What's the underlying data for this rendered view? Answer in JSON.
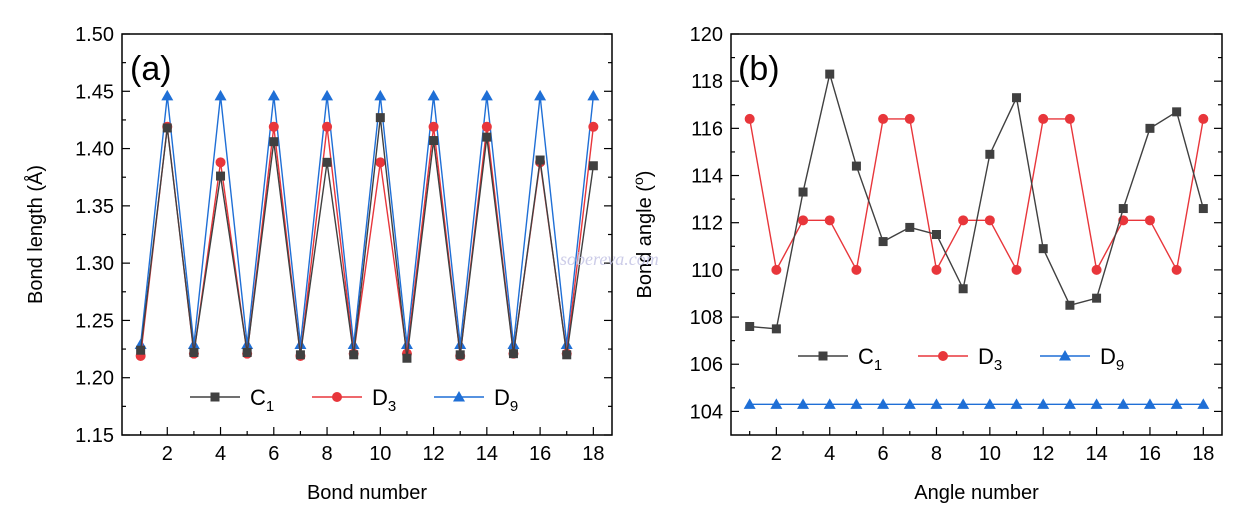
{
  "watermark": "sobereva.com",
  "colors": {
    "C1": "#404040",
    "D3": "#e8363b",
    "D9": "#1f6fd6"
  },
  "chart_data": [
    {
      "type": "line",
      "panel_label": "(a)",
      "xlabel": "Bond number",
      "ylabel_text": "Bond length (",
      "ylabel_unit": "Å",
      "ylabel_close": ")",
      "xlim": [
        0.3,
        18.7
      ],
      "ylim": [
        1.15,
        1.5
      ],
      "xticks": [
        2,
        4,
        6,
        8,
        10,
        12,
        14,
        16,
        18
      ],
      "xtick_labels": [
        "2",
        "4",
        "6",
        "8",
        "10",
        "12",
        "14",
        "16",
        "18"
      ],
      "yticks": [
        1.15,
        1.2,
        1.25,
        1.3,
        1.35,
        1.4,
        1.45,
        1.5
      ],
      "ytick_labels": [
        "1.15",
        "1.20",
        "1.25",
        "1.30",
        "1.35",
        "1.40",
        "1.45",
        "1.50"
      ],
      "x": [
        1,
        2,
        3,
        4,
        5,
        6,
        7,
        8,
        9,
        10,
        11,
        12,
        13,
        14,
        15,
        16,
        17,
        18
      ],
      "legend_position": "bottom",
      "series": [
        {
          "name": "C",
          "name_sub": "1",
          "key": "C1",
          "marker": "square",
          "values": [
            1.224,
            1.418,
            1.222,
            1.376,
            1.222,
            1.406,
            1.22,
            1.388,
            1.22,
            1.427,
            1.217,
            1.407,
            1.22,
            1.41,
            1.221,
            1.39,
            1.22,
            1.385
          ]
        },
        {
          "name": "D",
          "name_sub": "3",
          "key": "D3",
          "marker": "circle",
          "values": [
            1.219,
            1.419,
            1.221,
            1.388,
            1.221,
            1.419,
            1.219,
            1.419,
            1.221,
            1.388,
            1.221,
            1.419,
            1.219,
            1.419,
            1.221,
            1.388,
            1.221,
            1.419
          ]
        },
        {
          "name": "D",
          "name_sub": "9",
          "key": "D9",
          "marker": "triangle",
          "values": [
            1.229,
            1.446,
            1.229,
            1.446,
            1.229,
            1.446,
            1.229,
            1.446,
            1.229,
            1.446,
            1.229,
            1.446,
            1.229,
            1.446,
            1.229,
            1.446,
            1.229,
            1.446
          ]
        }
      ]
    },
    {
      "type": "line",
      "panel_label": "(b)",
      "xlabel": "Angle number",
      "ylabel_text": "Bond angle (",
      "ylabel_unit": "o",
      "ylabel_close": ")",
      "xlim": [
        0.3,
        18.7
      ],
      "ylim": [
        103,
        120
      ],
      "xticks": [
        2,
        4,
        6,
        8,
        10,
        12,
        14,
        16,
        18
      ],
      "xtick_labels": [
        "2",
        "4",
        "6",
        "8",
        "10",
        "12",
        "14",
        "16",
        "18"
      ],
      "yticks": [
        104,
        106,
        108,
        110,
        112,
        114,
        116,
        118,
        120
      ],
      "ytick_labels": [
        "104",
        "106",
        "108",
        "110",
        "112",
        "114",
        "116",
        "118",
        "120"
      ],
      "x": [
        1,
        2,
        3,
        4,
        5,
        6,
        7,
        8,
        9,
        10,
        11,
        12,
        13,
        14,
        15,
        16,
        17,
        18
      ],
      "legend_position": "bottom",
      "series": [
        {
          "name": "C",
          "name_sub": "1",
          "key": "C1",
          "marker": "square",
          "values": [
            107.6,
            107.5,
            113.3,
            118.3,
            114.4,
            111.2,
            111.8,
            111.5,
            109.2,
            114.9,
            117.3,
            110.9,
            108.5,
            108.8,
            112.6,
            116.0,
            116.7,
            112.6
          ]
        },
        {
          "name": "D",
          "name_sub": "3",
          "key": "D3",
          "marker": "circle",
          "values": [
            116.4,
            110.0,
            112.1,
            112.1,
            110.0,
            116.4,
            116.4,
            110.0,
            112.1,
            112.1,
            110.0,
            116.4,
            116.4,
            110.0,
            112.1,
            112.1,
            110.0,
            116.4
          ]
        },
        {
          "name": "D",
          "name_sub": "9",
          "key": "D9",
          "marker": "triangle",
          "values": [
            104.3,
            104.3,
            104.3,
            104.3,
            104.3,
            104.3,
            104.3,
            104.3,
            104.3,
            104.3,
            104.3,
            104.3,
            104.3,
            104.3,
            104.3,
            104.3,
            104.3,
            104.3
          ]
        }
      ]
    }
  ]
}
